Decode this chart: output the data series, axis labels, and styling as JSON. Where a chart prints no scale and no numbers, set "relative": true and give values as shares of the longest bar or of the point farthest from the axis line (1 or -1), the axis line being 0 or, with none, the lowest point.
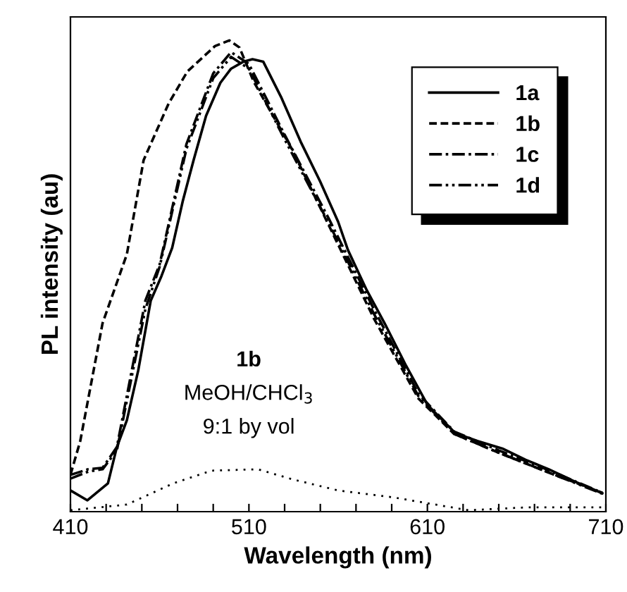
{
  "chart_data": {
    "type": "line",
    "relative": true,
    "xlabel": "Wavelength (nm)",
    "ylabel": "PL intensity (au)",
    "xlim": [
      410,
      710
    ],
    "xticks": [
      410,
      {
        "value": 430,
        "label": null
      },
      {
        "value": 450,
        "label": null
      },
      {
        "value": 470,
        "label": null
      },
      {
        "value": 490,
        "label": null
      },
      510,
      {
        "value": 530,
        "label": null
      },
      {
        "value": 550,
        "label": null
      },
      {
        "value": 570,
        "label": null
      },
      {
        "value": 590,
        "label": null
      },
      610,
      {
        "value": 630,
        "label": null
      },
      {
        "value": 650,
        "label": null
      },
      {
        "value": 670,
        "label": null
      },
      {
        "value": 690,
        "label": null
      },
      710
    ],
    "legend": "top right",
    "grid": false,
    "marker": "none",
    "annotations": [
      "1b",
      "MeOH/CHCl$_{3}$",
      "9:1 by vol"
    ],
    "series": [
      {
        "name": "1a",
        "color": "#000000",
        "line_style": "solid",
        "x": [
          410,
          419.5,
          431,
          436,
          441.6,
          448,
          455,
          461,
          467,
          473,
          479,
          486,
          494,
          500,
          507,
          512,
          518,
          528,
          539,
          550,
          560,
          565.5,
          576,
          586,
          598,
          610,
          625.5,
          638,
          652,
          665,
          678,
          692,
          708
        ],
        "values": [
          0.045,
          0.024,
          0.06,
          0.137,
          0.194,
          0.3,
          0.448,
          0.5,
          0.56,
          0.66,
          0.746,
          0.84,
          0.91,
          0.94,
          0.955,
          0.96,
          0.955,
          0.88,
          0.785,
          0.7,
          0.615,
          0.555,
          0.47,
          0.4,
          0.31,
          0.227,
          0.167,
          0.15,
          0.134,
          0.11,
          0.09,
          0.065,
          0.039
        ]
      },
      {
        "name": "1b",
        "color": "#000000",
        "line_style": "dashed",
        "x": [
          410,
          415.5,
          428,
          441.6,
          451,
          465,
          475.5,
          491,
          499,
          504.7,
          512.6,
          534,
          557,
          580,
          605,
          625,
          650,
          680,
          708
        ],
        "values": [
          0.078,
          0.15,
          0.4,
          0.546,
          0.746,
          0.866,
          0.934,
          0.988,
          1.0,
          0.985,
          0.913,
          0.77,
          0.59,
          0.41,
          0.24,
          0.165,
          0.125,
          0.08,
          0.04
        ]
      },
      {
        "name": "1c",
        "color": "#000000",
        "line_style": "dashdot",
        "x": [
          410,
          420,
          428,
          436,
          452,
          460,
          475,
          490,
          500,
          510,
          530,
          555,
          580,
          605,
          625,
          650,
          680,
          708
        ],
        "values": [
          0.078,
          0.09,
          0.093,
          0.137,
          0.448,
          0.525,
          0.78,
          0.93,
          0.975,
          0.95,
          0.8,
          0.62,
          0.43,
          0.25,
          0.17,
          0.13,
          0.085,
          0.04
        ]
      },
      {
        "name": "1d",
        "color": "#000000",
        "line_style": "dashdotdot",
        "x": [
          410,
          420,
          428,
          436,
          452,
          460,
          475,
          490,
          500,
          510,
          530,
          555,
          580,
          605,
          625,
          650,
          680,
          708
        ],
        "values": [
          0.07,
          0.085,
          0.09,
          0.13,
          0.43,
          0.52,
          0.77,
          0.92,
          0.965,
          0.94,
          0.79,
          0.61,
          0.42,
          0.245,
          0.165,
          0.125,
          0.08,
          0.038
        ]
      },
      {
        "color": "#000000",
        "line_style": "dotted",
        "x": [
          410,
          441.6,
          467.6,
          489,
          515,
          534,
          560,
          591.5,
          633,
          665,
          708
        ],
        "values": [
          0.003,
          0.015,
          0.06,
          0.087,
          0.09,
          0.069,
          0.045,
          0.03,
          0.003,
          0.009,
          0.009
        ]
      }
    ]
  }
}
